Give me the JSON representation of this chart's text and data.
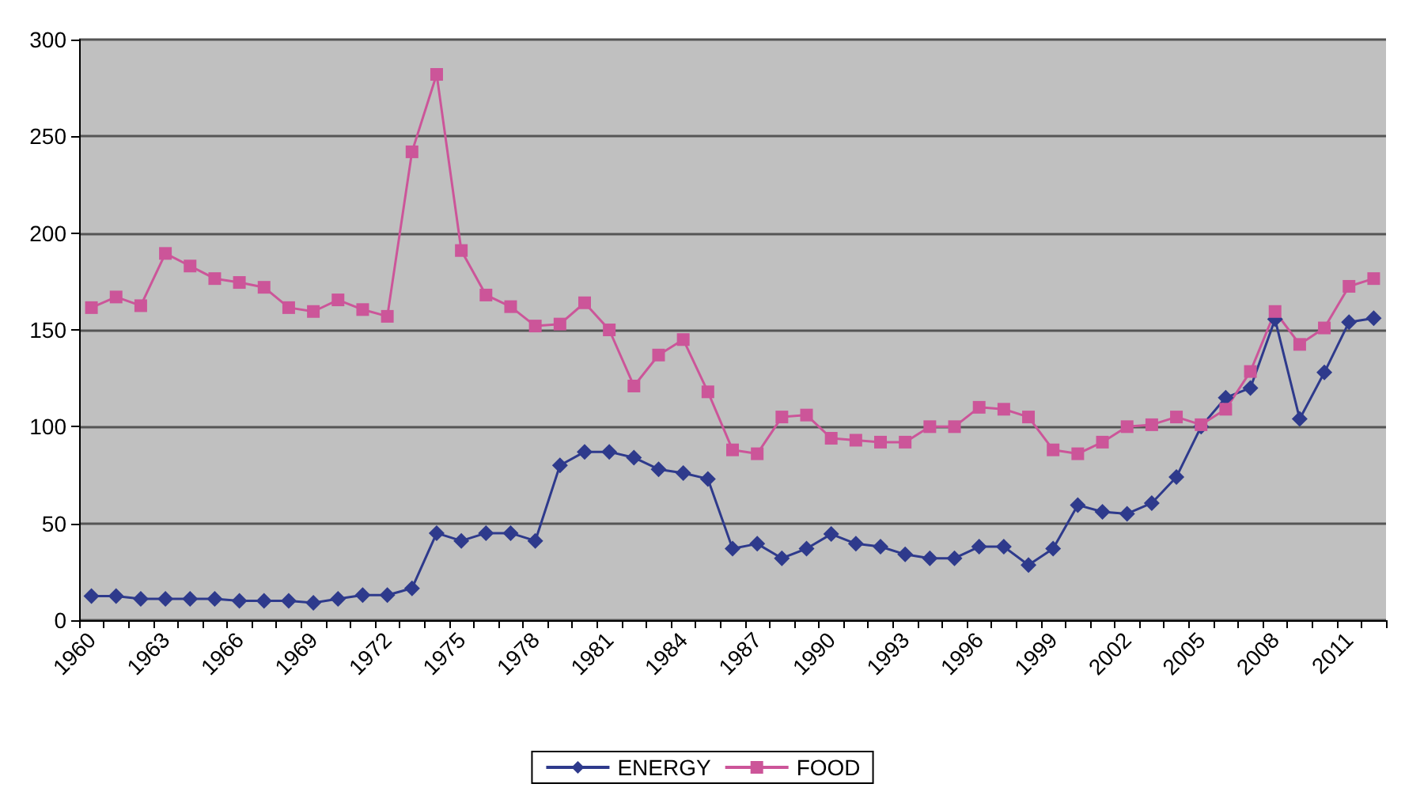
{
  "chart_data": {
    "type": "line",
    "categories": [
      "1960",
      null,
      null,
      "1963",
      null,
      null,
      "1966",
      null,
      null,
      "1969",
      null,
      null,
      "1972",
      null,
      null,
      "1975",
      null,
      null,
      "1978",
      null,
      null,
      "1981",
      null,
      null,
      "1984",
      null,
      null,
      "1987",
      null,
      null,
      "1990",
      null,
      null,
      "1993",
      null,
      null,
      "1996",
      null,
      null,
      "1999",
      null,
      null,
      "2002",
      null,
      null,
      "2005",
      null,
      null,
      "2008",
      null,
      null,
      "2011",
      null
    ],
    "series": [
      {
        "name": "ENERGY",
        "color": "#2e3a8c",
        "marker": "diamond",
        "values": [
          12.5,
          12.5,
          11,
          11,
          11,
          11,
          10,
          10,
          10,
          9,
          11,
          13,
          13,
          16.5,
          45,
          41,
          45,
          45,
          41,
          80,
          87,
          87,
          84,
          78,
          76,
          73,
          37,
          39.5,
          32,
          37,
          44.5,
          39.5,
          38,
          34,
          32,
          32,
          38,
          38,
          28.5,
          37,
          59.5,
          56,
          55,
          60.5,
          74,
          100,
          115,
          120,
          155.5,
          104,
          128,
          154,
          156
        ]
      },
      {
        "name": "FOOD",
        "color": "#cc5599",
        "marker": "square",
        "values": [
          161.5,
          167,
          162.5,
          189.5,
          183,
          176.5,
          174.5,
          172,
          161.5,
          159.5,
          165.5,
          160.5,
          157,
          242,
          282,
          191,
          168,
          162,
          152,
          153,
          164,
          150,
          121,
          137,
          145,
          118,
          88,
          86,
          105,
          106,
          94,
          93,
          92,
          92,
          100,
          100,
          110,
          109,
          105,
          88,
          86,
          92,
          100,
          101,
          105,
          101,
          109,
          128.5,
          159.5,
          142.5,
          151,
          172.5,
          176.5
        ]
      }
    ],
    "ylim": [
      0,
      300
    ],
    "yticks": [
      0,
      50,
      100,
      150,
      200,
      250,
      300
    ],
    "grid": "y",
    "legend": "bottom",
    "line_style": "solid"
  }
}
